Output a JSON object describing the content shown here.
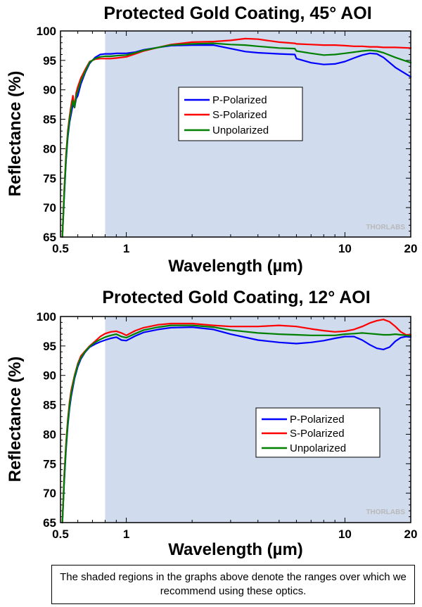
{
  "caption": "The shaded regions in the graphs above denote the ranges over which we recommend using these optics.",
  "colors": {
    "shade": "#d0dbee",
    "p_polarized": "#0000ff",
    "s_polarized": "#ff0000",
    "unpolarized": "#008000"
  },
  "chart_data": [
    {
      "type": "line",
      "title": "Protected Gold Coating, 45° AOI",
      "xlabel": "Wavelength (µm)",
      "ylabel": "Reflectance (%)",
      "xscale": "log",
      "xlim": [
        0.5,
        20
      ],
      "ylim": [
        65,
        100
      ],
      "xticks": [
        "0.5",
        "1",
        "10",
        "20"
      ],
      "yticks": [
        "65",
        "70",
        "75",
        "80",
        "85",
        "90",
        "95",
        "100"
      ],
      "shaded_range": [
        0.8,
        20
      ],
      "legend_position": "center",
      "watermark": "THORLABS",
      "series": [
        {
          "name": "P-Polarized",
          "x": [
            0.51,
            0.52,
            0.53,
            0.54,
            0.55,
            0.56,
            0.57,
            0.58,
            0.59,
            0.6,
            0.62,
            0.65,
            0.68,
            0.72,
            0.76,
            0.8,
            0.85,
            0.9,
            1.0,
            1.1,
            1.2,
            1.4,
            1.6,
            2.0,
            2.5,
            3.0,
            3.5,
            4.0,
            5.0,
            5.9,
            6.0,
            7.0,
            8.0,
            9.0,
            10,
            11,
            12,
            13,
            14,
            15,
            17,
            20
          ],
          "y": [
            65.0,
            72.0,
            78.0,
            82.0,
            84.5,
            86.0,
            87.5,
            87.0,
            88.5,
            89.0,
            91.0,
            93.0,
            94.5,
            95.5,
            96.0,
            96.1,
            96.1,
            96.2,
            96.2,
            96.4,
            96.8,
            97.2,
            97.5,
            97.6,
            97.6,
            97.0,
            96.5,
            96.3,
            96.1,
            96.0,
            95.3,
            94.6,
            94.3,
            94.4,
            94.8,
            95.4,
            95.9,
            96.2,
            96.1,
            95.5,
            93.8,
            92.2
          ]
        },
        {
          "name": "S-Polarized",
          "x": [
            0.51,
            0.52,
            0.53,
            0.54,
            0.55,
            0.56,
            0.57,
            0.58,
            0.59,
            0.6,
            0.62,
            0.65,
            0.68,
            0.72,
            0.76,
            0.8,
            0.85,
            0.9,
            1.0,
            1.1,
            1.2,
            1.4,
            1.6,
            2.0,
            2.5,
            3.0,
            3.5,
            4.0,
            5.0,
            5.9,
            6.0,
            7.0,
            8.0,
            9.0,
            10,
            11,
            12,
            13,
            14,
            15,
            17,
            20
          ],
          "y": [
            65.0,
            73.0,
            79.0,
            83.0,
            85.5,
            87.5,
            89.0,
            87.0,
            89.5,
            90.5,
            92.0,
            93.5,
            94.8,
            95.2,
            95.3,
            95.3,
            95.3,
            95.4,
            95.6,
            96.1,
            96.6,
            97.2,
            97.7,
            98.1,
            98.2,
            98.4,
            98.7,
            98.6,
            98.1,
            97.9,
            97.8,
            97.7,
            97.6,
            97.6,
            97.5,
            97.4,
            97.4,
            97.3,
            97.3,
            97.2,
            97.2,
            97.1
          ]
        },
        {
          "name": "Unpolarized",
          "x": [
            0.51,
            0.52,
            0.53,
            0.54,
            0.55,
            0.56,
            0.57,
            0.58,
            0.59,
            0.6,
            0.62,
            0.65,
            0.68,
            0.72,
            0.76,
            0.8,
            0.85,
            0.9,
            1.0,
            1.1,
            1.2,
            1.4,
            1.6,
            2.0,
            2.5,
            3.0,
            3.5,
            4.0,
            5.0,
            5.9,
            6.0,
            7.0,
            8.0,
            9.0,
            10,
            11,
            12,
            13,
            14,
            15,
            17,
            20
          ],
          "y": [
            65.0,
            72.5,
            78.5,
            82.5,
            85.0,
            86.8,
            88.2,
            87.0,
            89.0,
            89.8,
            91.5,
            93.2,
            94.7,
            95.3,
            95.6,
            95.7,
            95.7,
            95.8,
            95.9,
            96.3,
            96.7,
            97.2,
            97.6,
            97.8,
            97.9,
            97.7,
            97.6,
            97.4,
            97.1,
            97.0,
            96.6,
            96.2,
            95.9,
            96.0,
            96.2,
            96.4,
            96.6,
            96.7,
            96.6,
            96.3,
            95.5,
            94.6
          ]
        }
      ]
    },
    {
      "type": "line",
      "title": "Protected Gold Coating, 12° AOI",
      "xlabel": "Wavelength (µm)",
      "ylabel": "Reflectance (%)",
      "xscale": "log",
      "xlim": [
        0.5,
        20
      ],
      "ylim": [
        65,
        100
      ],
      "xticks": [
        "0.5",
        "1",
        "10",
        "20"
      ],
      "yticks": [
        "65",
        "70",
        "75",
        "80",
        "85",
        "90",
        "95",
        "100"
      ],
      "shaded_range": [
        0.8,
        20
      ],
      "legend_position": "bottom-right",
      "watermark": "THORLABS",
      "series": [
        {
          "name": "P-Polarized",
          "x": [
            0.51,
            0.52,
            0.53,
            0.54,
            0.55,
            0.56,
            0.58,
            0.6,
            0.62,
            0.65,
            0.68,
            0.72,
            0.76,
            0.8,
            0.85,
            0.9,
            0.95,
            1.0,
            1.1,
            1.2,
            1.4,
            1.6,
            2.0,
            2.5,
            3.0,
            4.0,
            5.0,
            6.0,
            7.0,
            8.0,
            9.0,
            10,
            11,
            12,
            13,
            14,
            15,
            16,
            17,
            18,
            19,
            20
          ],
          "y": [
            65.0,
            72.0,
            77.5,
            81.5,
            84.5,
            86.5,
            89.5,
            91.5,
            92.8,
            94.0,
            94.8,
            95.3,
            95.7,
            96.0,
            96.3,
            96.5,
            96.0,
            95.9,
            96.7,
            97.3,
            97.8,
            98.1,
            98.2,
            97.8,
            97.0,
            96.0,
            95.6,
            95.4,
            95.6,
            95.9,
            96.3,
            96.6,
            96.6,
            96.0,
            95.2,
            94.6,
            94.4,
            94.8,
            95.8,
            96.4,
            96.6,
            96.5
          ]
        },
        {
          "name": "S-Polarized",
          "x": [
            0.51,
            0.52,
            0.53,
            0.54,
            0.55,
            0.56,
            0.58,
            0.6,
            0.62,
            0.65,
            0.68,
            0.72,
            0.76,
            0.8,
            0.85,
            0.9,
            0.95,
            1.0,
            1.1,
            1.2,
            1.4,
            1.6,
            2.0,
            2.5,
            3.0,
            4.0,
            5.0,
            6.0,
            7.0,
            8.0,
            9.0,
            10,
            11,
            12,
            13,
            14,
            15,
            16,
            17,
            18,
            19,
            20
          ],
          "y": [
            65.0,
            73.0,
            78.5,
            82.5,
            85.5,
            87.5,
            90.0,
            92.0,
            93.3,
            94.2,
            95.0,
            95.8,
            96.6,
            97.1,
            97.4,
            97.5,
            97.2,
            96.8,
            97.6,
            98.1,
            98.6,
            98.8,
            98.8,
            98.5,
            98.3,
            98.3,
            98.5,
            98.3,
            97.9,
            97.6,
            97.4,
            97.5,
            97.8,
            98.3,
            98.9,
            99.3,
            99.5,
            99.1,
            98.3,
            97.4,
            96.9,
            96.9
          ]
        },
        {
          "name": "Unpolarized",
          "x": [
            0.51,
            0.52,
            0.53,
            0.54,
            0.55,
            0.56,
            0.58,
            0.6,
            0.62,
            0.65,
            0.68,
            0.72,
            0.76,
            0.8,
            0.85,
            0.9,
            0.95,
            1.0,
            1.1,
            1.2,
            1.4,
            1.6,
            2.0,
            2.5,
            3.0,
            4.0,
            5.0,
            6.0,
            7.0,
            8.0,
            9.0,
            10,
            11,
            12,
            13,
            14,
            15,
            16,
            17,
            18,
            19,
            20
          ],
          "y": [
            65.0,
            72.5,
            78.0,
            82.0,
            85.0,
            87.0,
            89.8,
            91.8,
            93.0,
            94.1,
            94.9,
            95.6,
            96.1,
            96.5,
            96.8,
            97.0,
            96.6,
            96.4,
            97.1,
            97.7,
            98.2,
            98.5,
            98.5,
            98.2,
            97.7,
            97.2,
            97.0,
            96.9,
            96.8,
            96.8,
            96.8,
            97.0,
            97.1,
            97.2,
            97.1,
            97.0,
            96.9,
            96.9,
            97.0,
            96.9,
            96.8,
            96.7
          ]
        }
      ]
    }
  ]
}
